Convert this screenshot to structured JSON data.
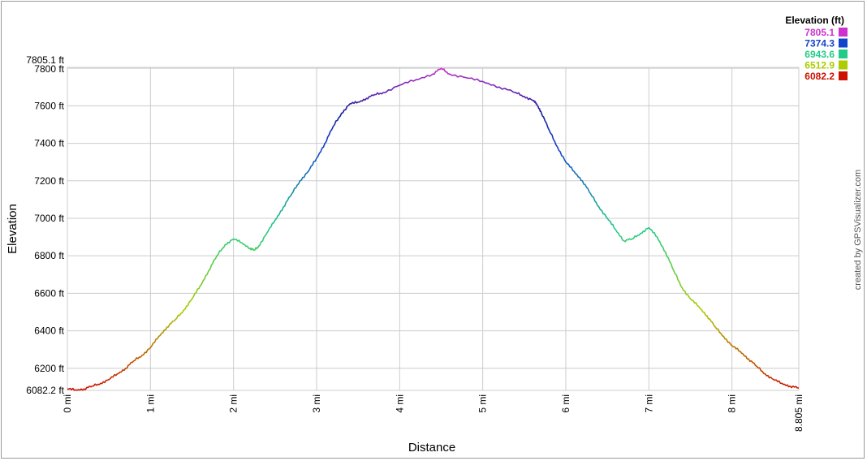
{
  "chart_data": {
    "type": "line",
    "xlabel": "Distance",
    "ylabel": "Elevation",
    "xlim": [
      0,
      8.805
    ],
    "ylim": [
      6082.2,
      7805.1
    ],
    "x_ticks": [
      {
        "value": 0,
        "label": "0 mi"
      },
      {
        "value": 1,
        "label": "1 mi"
      },
      {
        "value": 2,
        "label": "2 mi"
      },
      {
        "value": 3,
        "label": "3 mi"
      },
      {
        "value": 4,
        "label": "4 mi"
      },
      {
        "value": 5,
        "label": "5 mi"
      },
      {
        "value": 6,
        "label": "6 mi"
      },
      {
        "value": 7,
        "label": "7 mi"
      },
      {
        "value": 8,
        "label": "8 mi"
      },
      {
        "value": 8.805,
        "label": "8.805 mi"
      }
    ],
    "y_ticks": [
      {
        "value": 6082.2,
        "label": "6082.2 ft"
      },
      {
        "value": 6200,
        "label": "6200 ft"
      },
      {
        "value": 6400,
        "label": "6400 ft"
      },
      {
        "value": 6600,
        "label": "6600 ft"
      },
      {
        "value": 6800,
        "label": "6800 ft"
      },
      {
        "value": 7000,
        "label": "7000 ft"
      },
      {
        "value": 7200,
        "label": "7200 ft"
      },
      {
        "value": 7400,
        "label": "7400 ft"
      },
      {
        "value": 7600,
        "label": "7600 ft"
      },
      {
        "value": 7800,
        "label": "7800 ft"
      },
      {
        "value": 7805.1,
        "label": "7805.1 ft"
      }
    ],
    "grid": true,
    "legend": {
      "title": "Elevation (ft)",
      "placement": "top-right",
      "entries": [
        {
          "label": "7805.1",
          "color": "#cc33cc"
        },
        {
          "label": "7374.3",
          "color": "#1144cc"
        },
        {
          "label": "6943.6",
          "color": "#22cc88"
        },
        {
          "label": "6512.9",
          "color": "#aacc00"
        },
        {
          "label": "6082.2",
          "color": "#cc1100"
        }
      ]
    },
    "series": [
      {
        "x": [
          0,
          0.1,
          0.2,
          0.3,
          0.4,
          0.5,
          0.6,
          0.7,
          0.8,
          0.9,
          1.0,
          1.1,
          1.2,
          1.3,
          1.4,
          1.5,
          1.6,
          1.7,
          1.8,
          1.9,
          2.0,
          2.1,
          2.2,
          2.25,
          2.3,
          2.4,
          2.5,
          2.6,
          2.7,
          2.8,
          2.9,
          3.0,
          3.1,
          3.2,
          3.3,
          3.4,
          3.5,
          3.6,
          3.7,
          3.8,
          4.0,
          4.2,
          4.4,
          4.5,
          4.6,
          4.8,
          5.0,
          5.2,
          5.4,
          5.5,
          5.6,
          5.65,
          5.7,
          5.8,
          5.9,
          6.0,
          6.1,
          6.2,
          6.3,
          6.4,
          6.5,
          6.6,
          6.7,
          6.8,
          6.9,
          7.0,
          7.1,
          7.2,
          7.3,
          7.4,
          7.5,
          7.6,
          7.7,
          7.8,
          7.9,
          8.0,
          8.1,
          8.2,
          8.3,
          8.4,
          8.5,
          8.6,
          8.7,
          8.805
        ],
        "y": [
          6090,
          6085,
          6090,
          6105,
          6120,
          6140,
          6170,
          6200,
          6240,
          6270,
          6310,
          6370,
          6420,
          6460,
          6510,
          6570,
          6640,
          6720,
          6800,
          6860,
          6890,
          6870,
          6840,
          6830,
          6850,
          6920,
          6990,
          7060,
          7130,
          7200,
          7250,
          7320,
          7400,
          7490,
          7560,
          7610,
          7620,
          7640,
          7660,
          7670,
          7710,
          7740,
          7770,
          7800,
          7770,
          7750,
          7730,
          7700,
          7670,
          7650,
          7630,
          7610,
          7570,
          7470,
          7380,
          7300,
          7250,
          7200,
          7130,
          7060,
          7000,
          6940,
          6880,
          6890,
          6920,
          6950,
          6900,
          6820,
          6720,
          6630,
          6570,
          6530,
          6480,
          6420,
          6370,
          6320,
          6290,
          6250,
          6210,
          6170,
          6140,
          6120,
          6105,
          6095
        ]
      }
    ]
  },
  "credit": "created by GPSVisualizer.com"
}
